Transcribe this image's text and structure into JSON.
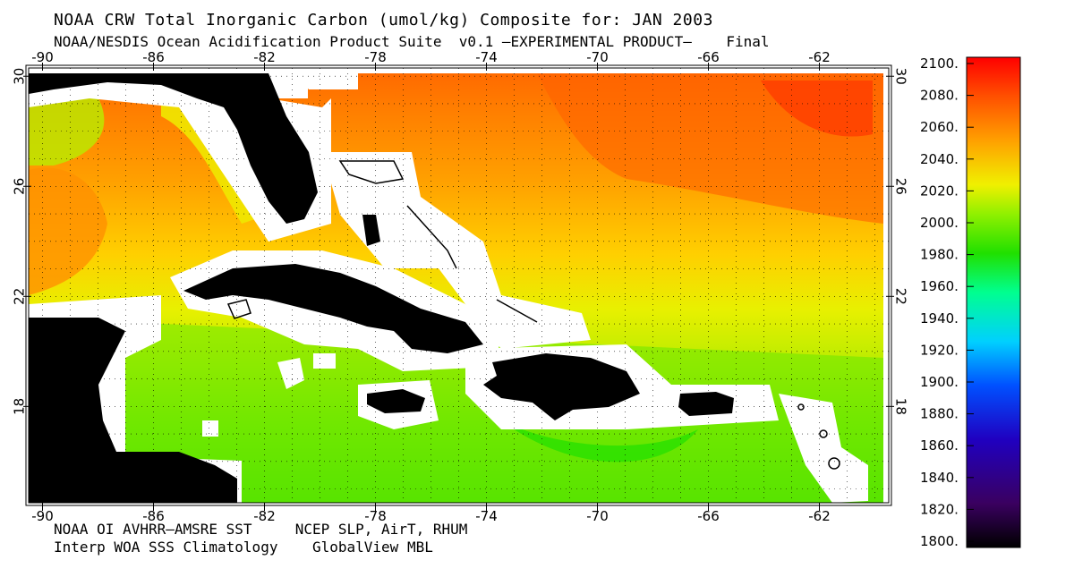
{
  "title": "NOAA CRW Total Inorganic Carbon (umol/kg) Composite for: JAN 2003",
  "subtitle": "NOAA/NESDIS Ocean Acidification Product Suite  v0.1 –EXPERIMENTAL PRODUCT–    Final",
  "sources": {
    "line1": "NOAA OI AVHRR–AMSRE SST     NCEP SLP, AirT, RHUM",
    "line2": "Interp WOA SSS Climatology    GlobalView MBL"
  },
  "map": {
    "lon_ticks": [
      -90,
      -86,
      -82,
      -78,
      -74,
      -70,
      -66,
      -62
    ],
    "lat_ticks": [
      30,
      26,
      22,
      18
    ],
    "lon_range": [
      -90.5,
      -59.5
    ],
    "lat_range": [
      14.5,
      30.3
    ],
    "land_color": "#000000",
    "mask_color": "#ffffff"
  },
  "colorbar": {
    "ticks": [
      "2100.",
      "2080.",
      "2060.",
      "2040.",
      "2020.",
      "2000.",
      "1980.",
      "1960.",
      "1940.",
      "1920.",
      "1900.",
      "1880.",
      "1860.",
      "1840.",
      "1820.",
      "1800."
    ],
    "min": 1800,
    "max": 2100,
    "colors": [
      "#000000",
      "#3a0060",
      "#2000c0",
      "#0050ff",
      "#00d0ff",
      "#00ff90",
      "#20e000",
      "#90f000",
      "#f0f000",
      "#ffa000",
      "#ff5000",
      "#ff0000"
    ]
  }
}
